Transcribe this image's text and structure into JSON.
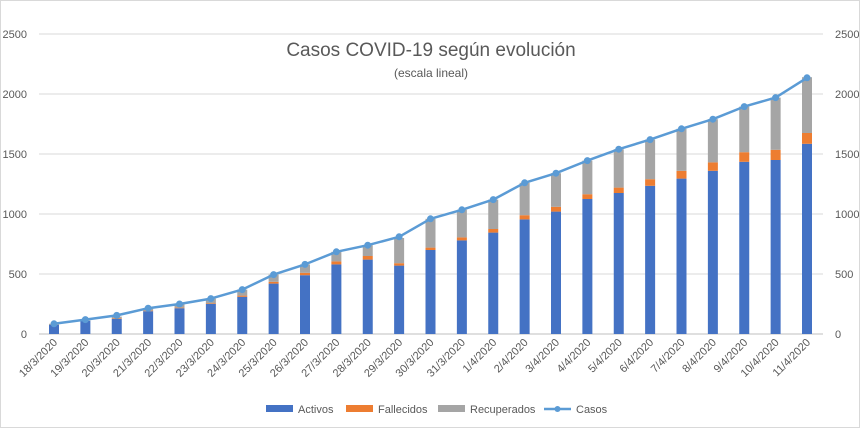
{
  "chart_data": {
    "type": "bar",
    "title": "Casos COVID-19 según evolución",
    "subtitle": "(escala lineal)",
    "xlabel": "",
    "ylabel": "",
    "ylim": [
      0,
      2500
    ],
    "y_ticks": [
      "0",
      "500",
      "1000",
      "1500",
      "2000",
      "2500"
    ],
    "grid": true,
    "legend_position": "bottom",
    "categories": [
      "18/3/2020",
      "19/3/2020",
      "20/3/2020",
      "21/3/2020",
      "22/3/2020",
      "23/3/2020",
      "24/3/2020",
      "25/3/2020",
      "26/3/2020",
      "27/3/2020",
      "28/3/2020",
      "29/3/2020",
      "30/3/2020",
      "31/3/2020",
      "1/4/2020",
      "2/4/2020",
      "3/4/2020",
      "4/4/2020",
      "5/4/2020",
      "6/4/2020",
      "7/4/2020",
      "8/4/2020",
      "9/4/2020",
      "10/4/2020",
      "11/4/2020"
    ],
    "series": [
      {
        "name": "Activos",
        "kind": "bar",
        "color": "#4472c4",
        "values": [
          75,
          110,
          125,
          190,
          215,
          250,
          310,
          420,
          490,
          580,
          620,
          570,
          700,
          780,
          845,
          955,
          1020,
          1125,
          1175,
          1235,
          1295,
          1360,
          1435,
          1450,
          1585
        ]
      },
      {
        "name": "Fallecidos",
        "kind": "bar",
        "color": "#ed7d31",
        "values": [
          0,
          0,
          5,
          5,
          5,
          5,
          10,
          15,
          20,
          25,
          30,
          20,
          20,
          25,
          30,
          35,
          40,
          40,
          45,
          55,
          65,
          70,
          80,
          85,
          90
        ]
      },
      {
        "name": "Recuperados",
        "kind": "bar",
        "color": "#a5a5a5",
        "values": [
          10,
          10,
          15,
          20,
          30,
          40,
          50,
          60,
          70,
          80,
          90,
          210,
          240,
          230,
          245,
          270,
          280,
          280,
          320,
          330,
          350,
          360,
          380,
          435,
          465
        ]
      },
      {
        "name": "Casos",
        "kind": "line",
        "color": "#5b9bd5",
        "values": [
          85,
          120,
          155,
          215,
          250,
          295,
          370,
          495,
          580,
          685,
          740,
          810,
          960,
          1035,
          1120,
          1260,
          1340,
          1445,
          1540,
          1620,
          1710,
          1790,
          1895,
          1970,
          2135
        ]
      }
    ]
  }
}
